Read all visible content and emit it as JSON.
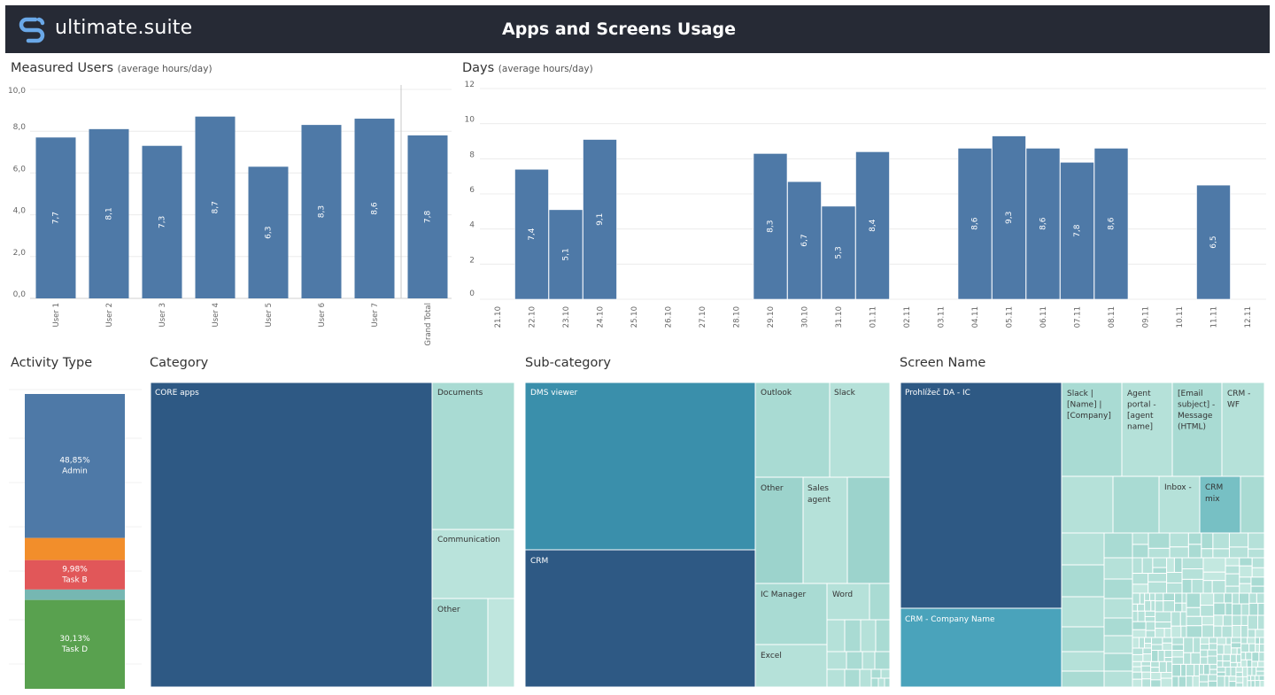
{
  "header": {
    "logo_text": "ultimate.suite",
    "title": "Apps and Screens Usage"
  },
  "colors": {
    "header_bg": "#262a35",
    "bar": "#4e79a7",
    "navy": "#2e5984",
    "teal": "#4aa3bb",
    "teal_mid": "#3a8fab",
    "light_teal": "#a8d9d1",
    "orange": "#f28e2b",
    "red": "#e15759",
    "green": "#59a14f",
    "grey_teal": "#76b7b2"
  },
  "sheets": {
    "measured_users": {
      "title": "Measured Users",
      "subtitle": "(average hours/day)"
    },
    "days": {
      "title": "Days",
      "subtitle": "(average hours/day)"
    },
    "activity_type": {
      "title": "Activity Type"
    },
    "category": {
      "title": "Category"
    },
    "subcategory": {
      "title": "Sub-category"
    },
    "screen_name": {
      "title": "Screen Name"
    }
  },
  "chart_data": [
    {
      "id": "measured_users",
      "type": "bar",
      "categories": [
        "User 1",
        "User 2",
        "User 3",
        "User 4",
        "User 5",
        "User 6",
        "User 7",
        "Grand Total"
      ],
      "values": [
        7.7,
        8.1,
        7.3,
        8.7,
        6.3,
        8.3,
        8.6,
        7.8
      ],
      "labels": [
        "7,7",
        "8,1",
        "7,3",
        "8,7",
        "6,3",
        "8,3",
        "8,6",
        "7,8"
      ],
      "yticks": [
        "0,0",
        "2,0",
        "4,0",
        "6,0",
        "8,0",
        "10,0"
      ],
      "ylim": [
        0,
        10
      ]
    },
    {
      "id": "days",
      "type": "bar",
      "categories": [
        "21.10",
        "22.10",
        "23.10",
        "24.10",
        "25.10",
        "26.10",
        "27.10",
        "28.10",
        "29.10",
        "30.10",
        "31.10",
        "01.11",
        "02.11",
        "03.11",
        "04.11",
        "05.11",
        "06.11",
        "07.11",
        "08.11",
        "09.11",
        "10.11",
        "11.11",
        "12.11"
      ],
      "values": [
        null,
        7.4,
        5.1,
        9.1,
        null,
        null,
        null,
        null,
        8.3,
        6.7,
        5.3,
        8.4,
        null,
        null,
        8.6,
        9.3,
        8.6,
        7.8,
        8.6,
        null,
        null,
        6.5,
        null
      ],
      "labels": [
        "",
        "7,4",
        "5,1",
        "9,1",
        "",
        "",
        "",
        "",
        "8,3",
        "6,7",
        "5,3",
        "8,4",
        "",
        "",
        "8,6",
        "9,3",
        "8,6",
        "7,8",
        "8,6",
        "",
        "",
        "6,5",
        ""
      ],
      "yticks": [
        "0",
        "2",
        "4",
        "6",
        "8",
        "10",
        "12"
      ],
      "ylim": [
        0,
        12
      ]
    },
    {
      "id": "activity_type",
      "type": "bar",
      "stacked": true,
      "segments": [
        {
          "name": "Admin",
          "value": 48.85,
          "label": "48,85%",
          "color": "#4e79a7"
        },
        {
          "name": "",
          "value": 7.5,
          "label": "",
          "color": "#f28e2b"
        },
        {
          "name": "Task B",
          "value": 9.98,
          "label": "9,98%",
          "color": "#e15759"
        },
        {
          "name": "",
          "value": 3.54,
          "label": "",
          "color": "#76b7b2"
        },
        {
          "name": "Task D",
          "value": 30.13,
          "label": "30,13%",
          "color": "#59a14f"
        }
      ]
    },
    {
      "id": "category",
      "type": "table",
      "treemap": true,
      "items": [
        {
          "label": "CORE apps"
        },
        {
          "label": "Documents"
        },
        {
          "label": "Communication"
        },
        {
          "label": "Other"
        }
      ]
    },
    {
      "id": "subcategory",
      "type": "table",
      "treemap": true,
      "items": [
        {
          "label": "DMS viewer"
        },
        {
          "label": "CRM"
        },
        {
          "label": "Outlook"
        },
        {
          "label": "Slack"
        },
        {
          "label": "Other"
        },
        {
          "label": "Sales agent"
        },
        {
          "label": "IC Manager"
        },
        {
          "label": "Word"
        },
        {
          "label": "Excel"
        }
      ]
    },
    {
      "id": "screen_name",
      "type": "table",
      "treemap": true,
      "items": [
        {
          "label": "Prohlížeč DA - IC"
        },
        {
          "label": "CRM - Company Name"
        },
        {
          "label": "Slack | [Name] | [Company]"
        },
        {
          "label": "Agent portal - [agent name]"
        },
        {
          "label": "[Email subject] - Message (HTML)"
        },
        {
          "label": "CRM - WF"
        },
        {
          "label": "Inbox -"
        },
        {
          "label": "CRM mix"
        }
      ]
    }
  ]
}
